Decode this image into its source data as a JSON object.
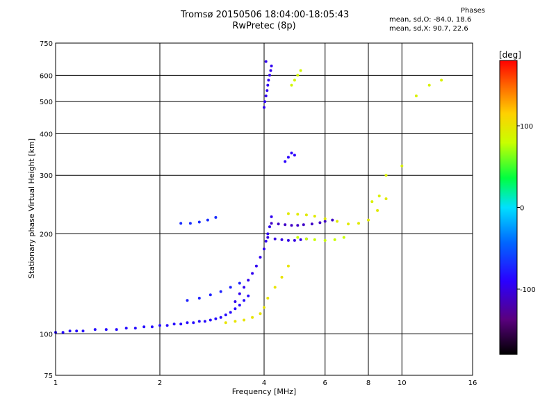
{
  "header": {
    "title_line1": "Tromsø 20150506 18:04:00-18:05:43",
    "title_line2": "RwPretec (8p)"
  },
  "phases_box": {
    "heading": "Phases",
    "line_o": "mean, sd,O: -84.0, 18.6",
    "line_x": "mean, sd,X:  90.7, 22.6"
  },
  "chart_data": {
    "type": "scatter",
    "xlabel": "Frequency [MHz]",
    "ylabel": "Stationary phase Virtual Height [km]",
    "xscale": "log",
    "yscale": "log",
    "xlim": [
      1,
      16
    ],
    "ylim": [
      75,
      750
    ],
    "xticks": [
      1,
      2,
      4,
      6,
      8,
      10,
      16
    ],
    "yticks": [
      75,
      100,
      200,
      300,
      400,
      500,
      600,
      750
    ],
    "grid": true,
    "colorbar": {
      "label": "[deg]",
      "range": [
        -180,
        180
      ],
      "ticks": [
        100,
        0,
        -100
      ]
    },
    "series": [
      {
        "trace": "o-low",
        "phase": -85,
        "x": [
          1.0,
          1.05,
          1.1,
          1.15,
          1.2,
          1.3,
          1.4,
          1.5,
          1.6,
          1.7,
          1.8,
          1.9,
          2.0,
          2.1,
          2.2,
          2.3,
          2.4,
          2.5,
          2.6,
          2.7,
          2.8,
          2.9,
          3.0,
          3.1,
          3.2,
          3.3,
          3.4,
          3.5,
          3.6
        ],
        "y": [
          101,
          101,
          102,
          102,
          102,
          103,
          103,
          103,
          104,
          104,
          105,
          105,
          106,
          106,
          107,
          107,
          108,
          108,
          109,
          109,
          110,
          111,
          112,
          114,
          116,
          119,
          122,
          126,
          130
        ]
      },
      {
        "trace": "o-rise",
        "phase": -95,
        "x": [
          3.3,
          3.4,
          3.5,
          3.6,
          3.7,
          3.8,
          3.9,
          4.0,
          4.05,
          4.1,
          4.15,
          4.2
        ],
        "y": [
          125,
          132,
          138,
          145,
          152,
          160,
          170,
          180,
          190,
          200,
          210,
          225
        ]
      },
      {
        "trace": "o-branch",
        "phase": -75,
        "x": [
          2.4,
          2.6,
          2.8,
          3.0,
          3.2,
          3.4
        ],
        "y": [
          126,
          128,
          131,
          134,
          138,
          142
        ]
      },
      {
        "trace": "o-f1",
        "phase": -110,
        "x": [
          4.2,
          4.4,
          4.6,
          4.8,
          5.0,
          5.2,
          5.5,
          5.8,
          6.0,
          6.3
        ],
        "y": [
          215,
          214,
          213,
          212,
          212,
          213,
          214,
          216,
          218,
          220
        ]
      },
      {
        "trace": "o-f1-lower",
        "phase": -100,
        "x": [
          4.1,
          4.3,
          4.5,
          4.7,
          4.9,
          5.1,
          5.3
        ],
        "y": [
          195,
          193,
          192,
          191,
          191,
          192,
          193
        ]
      },
      {
        "trace": "o-spread",
        "phase": -95,
        "x": [
          4.0,
          4.02,
          4.05,
          4.08,
          4.1,
          4.12,
          4.15,
          4.18,
          4.2,
          4.05
        ],
        "y": [
          480,
          500,
          520,
          540,
          560,
          580,
          600,
          620,
          640,
          660
        ]
      },
      {
        "trace": "o-spread-mid",
        "phase": -90,
        "x": [
          4.6,
          4.7,
          4.8,
          4.9
        ],
        "y": [
          330,
          340,
          350,
          345
        ]
      },
      {
        "trace": "x-low",
        "phase": 100,
        "x": [
          3.1,
          3.3,
          3.5,
          3.7,
          3.9,
          4.0,
          4.1,
          4.3,
          4.5,
          4.7
        ],
        "y": [
          108,
          109,
          110,
          112,
          115,
          120,
          128,
          138,
          148,
          160
        ]
      },
      {
        "trace": "x-upper",
        "phase": 95,
        "x": [
          4.7,
          5.0,
          5.3,
          5.6,
          6.0,
          6.5,
          7.0,
          7.5,
          8.0,
          8.5,
          9.0
        ],
        "y": [
          230,
          229,
          228,
          226,
          222,
          218,
          214,
          215,
          220,
          235,
          255
        ]
      },
      {
        "trace": "x-mid",
        "phase": 80,
        "x": [
          5.0,
          5.3,
          5.6,
          6.0,
          6.4,
          6.8
        ],
        "y": [
          195,
          193,
          192,
          191,
          192,
          195
        ]
      },
      {
        "trace": "x-high-spread",
        "phase": 85,
        "x": [
          4.8,
          4.9,
          5.0,
          5.1
        ],
        "y": [
          560,
          580,
          600,
          620
        ]
      },
      {
        "trace": "f1-isolated",
        "phase": -70,
        "x": [
          2.3,
          2.45,
          2.6,
          2.75,
          2.9
        ],
        "y": [
          215,
          215,
          217,
          220,
          224
        ]
      },
      {
        "trace": "tail",
        "phase": 90,
        "x": [
          8.2,
          8.6,
          9.0,
          10.0,
          11.0,
          12.0,
          13.0
        ],
        "y": [
          250,
          260,
          300,
          320,
          520,
          560,
          580
        ]
      }
    ]
  }
}
